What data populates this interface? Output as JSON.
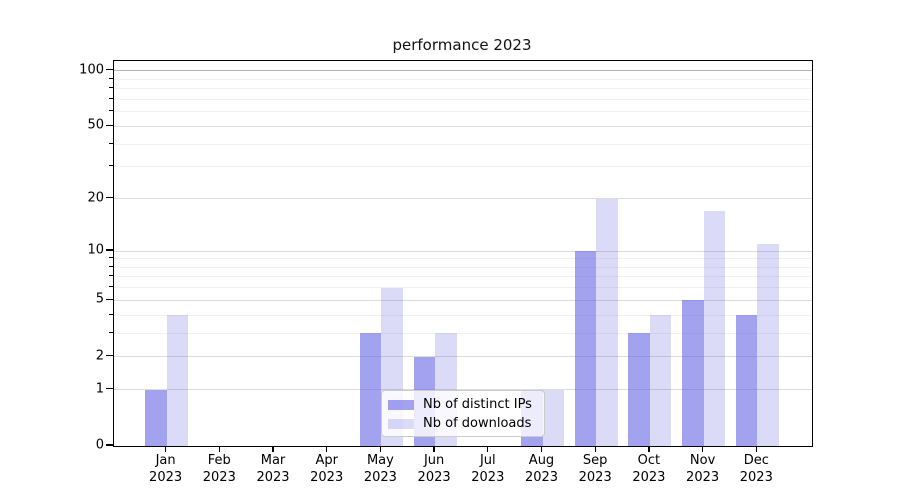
{
  "title": "performance 2023",
  "legend": {
    "items": [
      {
        "label": "Nb of distinct IPs"
      },
      {
        "label": "Nb of downloads"
      }
    ]
  },
  "chart_data": {
    "type": "bar",
    "title": "performance 2023",
    "xlabel": "",
    "ylabel": "",
    "categories": [
      "Jan",
      "Feb",
      "Mar",
      "Apr",
      "May",
      "Jun",
      "Jul",
      "Aug",
      "Sep",
      "Oct",
      "Nov",
      "Dec"
    ],
    "category_year": "2023",
    "series": [
      {
        "name": "Nb of distinct IPs",
        "values": [
          1,
          0,
          0,
          0,
          3,
          2,
          0,
          1,
          10,
          3,
          5,
          4
        ],
        "color": "rgba(90,90,225,0.56)"
      },
      {
        "name": "Nb of downloads",
        "values": [
          4,
          0,
          0,
          0,
          6,
          3,
          0,
          1,
          20,
          4,
          17,
          11
        ],
        "color": "rgba(90,90,225,0.22)"
      }
    ],
    "yscale": "log1p",
    "ylim": [
      0,
      113
    ],
    "yticks": [
      0,
      1,
      2,
      5,
      10,
      20,
      50,
      100
    ],
    "yticks_minor": [
      3,
      4,
      6,
      7,
      8,
      9,
      30,
      40,
      60,
      70,
      80,
      90
    ],
    "grid": true,
    "grid_color_major": "#dcdcdc",
    "grid_color_minor": "#f1f1f1",
    "grid_color_top": "#b3b3b3",
    "legend_position": "lower center"
  }
}
